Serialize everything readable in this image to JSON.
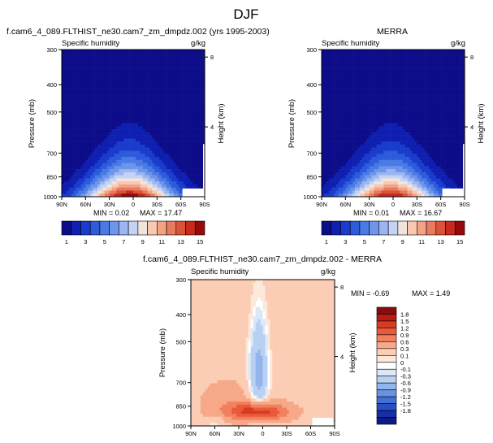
{
  "figure_title": "DJF",
  "chart_data": [
    {
      "type": "heatmap",
      "title": "f.cam6_4_089.FLTHIST_ne30.cam7_zm_dmpdz.002 (yrs 1995-2003)",
      "variable_label": "Specific humidity",
      "units": "g/kg",
      "ylabel": "Pressure (mb)",
      "y2label": "Height (km)",
      "x_ticks": [
        "90N",
        "60N",
        "30N",
        "0",
        "30S",
        "60S",
        "90S"
      ],
      "x_values": [
        90,
        60,
        30,
        0,
        -30,
        -60,
        -90
      ],
      "y_ticks": [
        300,
        400,
        500,
        700,
        850,
        1000
      ],
      "y2_ticks": [
        8,
        4
      ],
      "ylim": [
        300,
        1000
      ],
      "ylog": true,
      "min_label": "MIN =  0.02",
      "max_label": "MAX =  17.47",
      "min": 0.02,
      "max": 17.47,
      "center_lat": 5,
      "colorbar_labels": [
        "1",
        "3",
        "5",
        "7",
        "9",
        "11",
        "13",
        "15"
      ]
    },
    {
      "type": "heatmap",
      "title": "MERRA",
      "variable_label": "Specific humidity",
      "units": "g/kg",
      "ylabel": "Pressure (mb)",
      "y2label": "Height (km)",
      "x_ticks": [
        "90N",
        "60N",
        "30N",
        "0",
        "30S",
        "60S",
        "90S"
      ],
      "x_values": [
        90,
        60,
        30,
        0,
        -30,
        -60,
        -90
      ],
      "y_ticks": [
        300,
        400,
        500,
        700,
        850,
        1000
      ],
      "y2_ticks": [
        8,
        4
      ],
      "ylim": [
        300,
        1000
      ],
      "ylog": true,
      "min_label": "MIN =  0.01",
      "max_label": "MAX =  16.67",
      "min": 0.01,
      "max": 16.67,
      "center_lat": 3,
      "colorbar_labels": [
        "1",
        "3",
        "5",
        "7",
        "9",
        "11",
        "13",
        "15"
      ]
    },
    {
      "type": "heatmap",
      "title": "f.cam6_4_089.FLTHIST_ne30.cam7_zm_dmpdz.002 - MERRA",
      "variable_label": "Specific humidity",
      "units": "g/kg",
      "ylabel": "Pressure (mb)",
      "y2label": "Height (km)",
      "x_ticks": [
        "90N",
        "60N",
        "30N",
        "0",
        "30S",
        "60S",
        "90S"
      ],
      "x_values": [
        90,
        60,
        30,
        0,
        -30,
        -60,
        -90
      ],
      "y_ticks": [
        300,
        400,
        500,
        700,
        850,
        1000
      ],
      "y2_ticks": [
        8,
        4
      ],
      "ylim": [
        300,
        1000
      ],
      "ylog": true,
      "min_label": "MIN = -0.69",
      "max_label": "MAX =  1.49",
      "min": -0.69,
      "max": 1.49,
      "colorbar_labels": [
        "1.8",
        "1.5",
        "1.2",
        "0.9",
        "0.6",
        "0.3",
        "0.1",
        "0",
        "-0.1",
        "-0.3",
        "-0.6",
        "-0.9",
        "-1.2",
        "-1.5",
        "-1.8"
      ]
    }
  ],
  "colors": {
    "seq_palette": [
      "#0d0d8a",
      "#0f1fb0",
      "#1a3ccc",
      "#2d5bdc",
      "#4a7ae4",
      "#6d95ea",
      "#9ab5f0",
      "#c3d3f6",
      "#f2e4dc",
      "#f8c8b0",
      "#f3a284",
      "#ea7a5d",
      "#dc5238",
      "#c52a1c",
      "#960a0a"
    ],
    "div_palette": [
      "#8a0d0d",
      "#b81c14",
      "#d83a22",
      "#ea5a3a",
      "#f2805e",
      "#f7a888",
      "#fbcdb4",
      "#fde8dc",
      "#ffffff",
      "#dce8f8",
      "#b8d0f2",
      "#93b4ec",
      "#6a92e2",
      "#4470d6",
      "#2850c4",
      "#1430a8",
      "#0c1a88"
    ]
  }
}
